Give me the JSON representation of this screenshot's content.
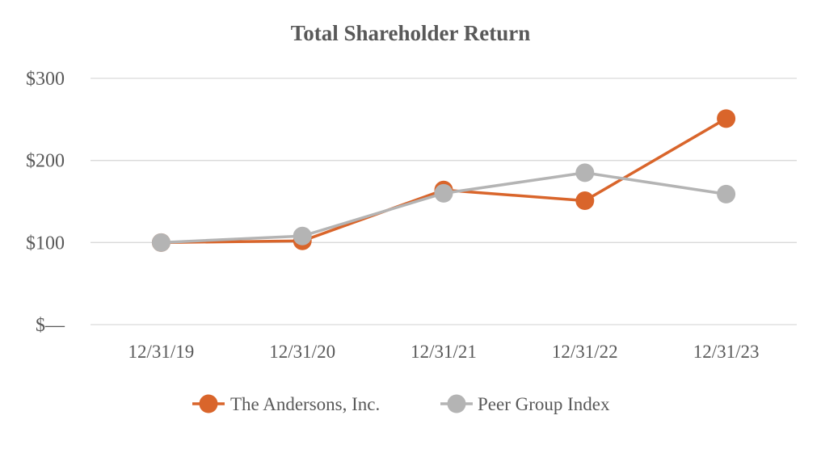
{
  "chart_data": {
    "type": "line",
    "title": "Total Shareholder Return",
    "xlabel": "",
    "ylabel": "",
    "categories": [
      "12/31/19",
      "12/31/20",
      "12/31/21",
      "12/31/22",
      "12/31/23"
    ],
    "ylim": [
      0,
      300
    ],
    "yticks": [
      {
        "value": 0,
        "label": "$—"
      },
      {
        "value": 100,
        "label": "$100"
      },
      {
        "value": 200,
        "label": "$200"
      },
      {
        "value": 300,
        "label": "$300"
      }
    ],
    "grid": true,
    "legend_position": "bottom",
    "series": [
      {
        "name": "The Andersons, Inc.",
        "color": "#d9652b",
        "values": [
          100,
          102,
          164,
          151,
          251
        ]
      },
      {
        "name": "Peer Group Index",
        "color": "#b4b4b4",
        "values": [
          100,
          108,
          160,
          185,
          159
        ]
      }
    ]
  }
}
